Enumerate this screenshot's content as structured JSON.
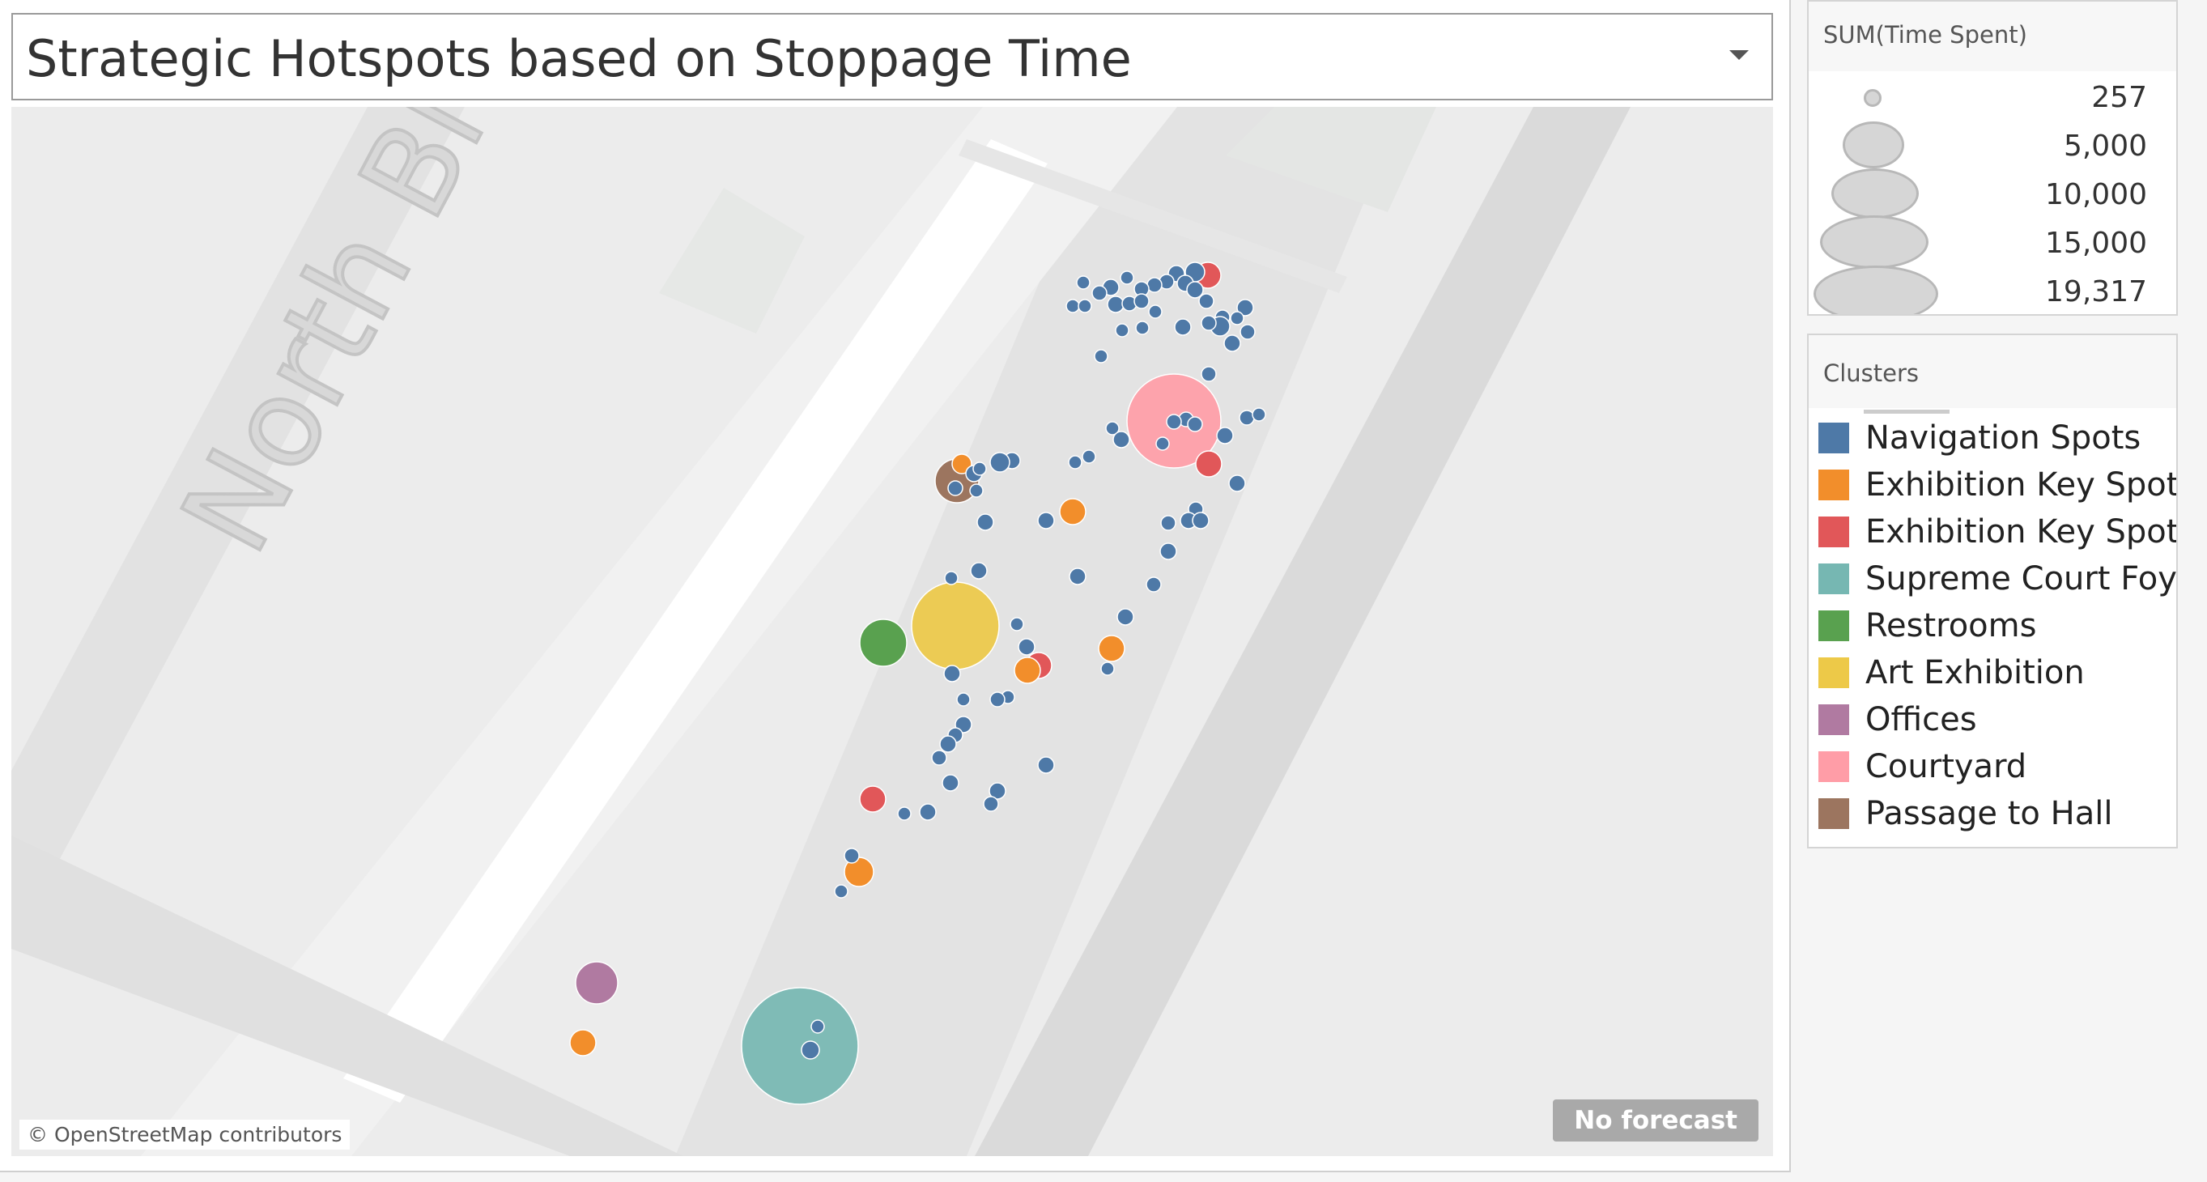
{
  "title": "Strategic Hotspots based on Stoppage Time",
  "map": {
    "street_label": "North Bl",
    "attribution": "© OpenStreetMap contributors",
    "forecast_label": "No forecast"
  },
  "size_legend": {
    "title": "SUM(Time Spent)",
    "items": [
      {
        "label": "257",
        "value": 257
      },
      {
        "label": "5,000",
        "value": 5000
      },
      {
        "label": "10,000",
        "value": 10000
      },
      {
        "label": "15,000",
        "value": 15000
      },
      {
        "label": "19,317",
        "value": 19317
      }
    ]
  },
  "color_legend": {
    "title": "Clusters",
    "items": [
      {
        "label": "Navigation Spots",
        "color": "#4e79a7"
      },
      {
        "label": "Exhibition Key Spots A",
        "color": "#f28e2b"
      },
      {
        "label": "Exhibition Key Spots B",
        "color": "#e15759"
      },
      {
        "label": "Supreme Court Foyer",
        "color": "#76b7b2"
      },
      {
        "label": "Restrooms",
        "color": "#59a14f"
      },
      {
        "label": "Art Exhibition",
        "color": "#edc948"
      },
      {
        "label": "Offices",
        "color": "#b07aa1"
      },
      {
        "label": "Courtyard",
        "color": "#ff9da7"
      },
      {
        "label": "Passage to Hall",
        "color": "#9c755f"
      }
    ]
  }
}
